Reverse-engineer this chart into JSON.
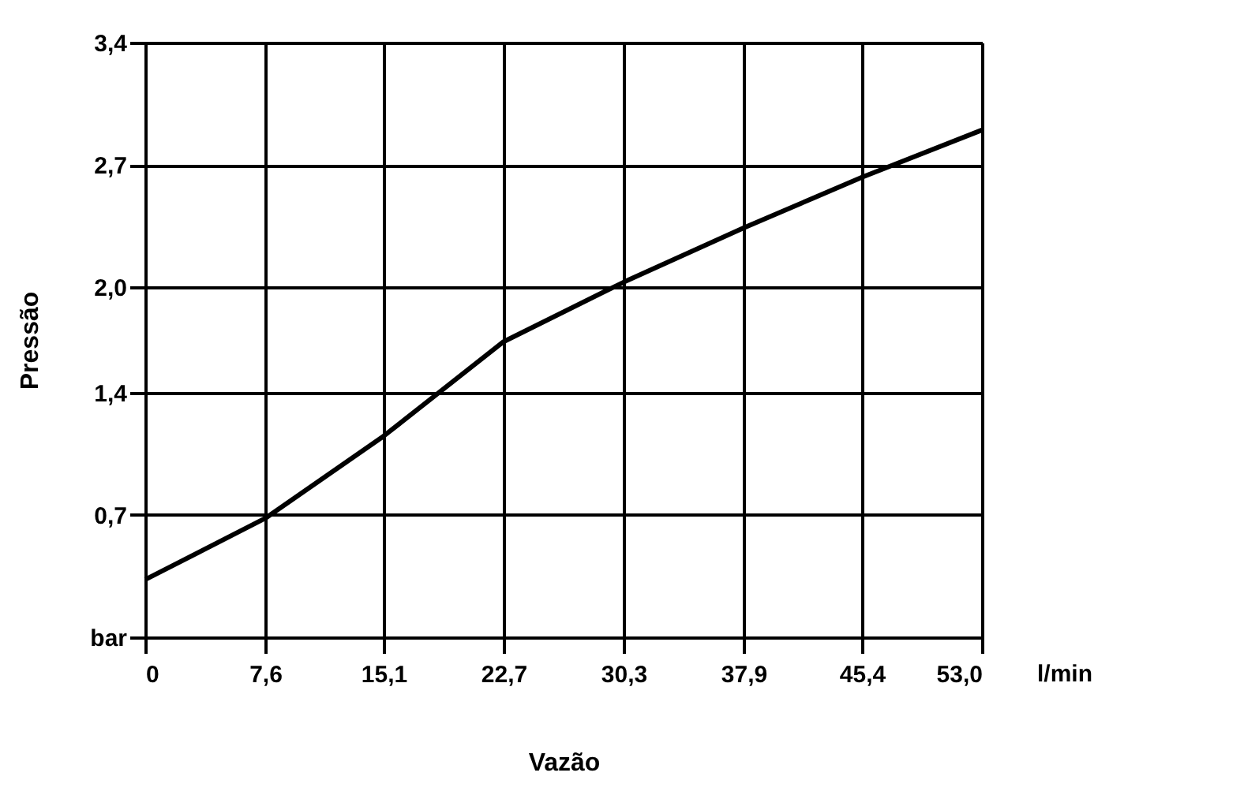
{
  "chart_data": {
    "type": "line",
    "xlabel": "Vazão",
    "ylabel": "Pressão",
    "x": [
      0,
      7.6,
      15.1,
      22.7,
      30.3,
      37.9,
      45.4,
      53.0
    ],
    "series": [
      {
        "color": "#000000",
        "values": [
          0.33,
          0.68,
          1.15,
          1.69,
          2.03,
          2.34,
          2.63,
          2.9
        ]
      }
    ],
    "xlim": [
      0,
      53.0
    ],
    "ylim": [
      0,
      3.4
    ],
    "xticks": [
      {
        "value": 0,
        "label": "0"
      },
      {
        "value": 7.6,
        "label": "7,6"
      },
      {
        "value": 15.1,
        "label": "15,1"
      },
      {
        "value": 22.7,
        "label": "22,7"
      },
      {
        "value": 30.3,
        "label": "30,3"
      },
      {
        "value": 37.9,
        "label": "37,9"
      },
      {
        "value": 45.4,
        "label": "45,4"
      },
      {
        "value": 53.0,
        "label": "53,0"
      }
    ],
    "yticks": [
      {
        "value": 0,
        "label": "bar"
      },
      {
        "value": 0.7,
        "label": "0,7"
      },
      {
        "value": 1.4,
        "label": "1,4"
      },
      {
        "value": 2.0,
        "label": "2,0"
      },
      {
        "value": 2.7,
        "label": "2,7"
      },
      {
        "value": 3.4,
        "label": "3,4"
      }
    ],
    "annotations": [
      "l/min"
    ],
    "grid": true,
    "legend": false,
    "marker": "none",
    "line_style": "solid"
  }
}
